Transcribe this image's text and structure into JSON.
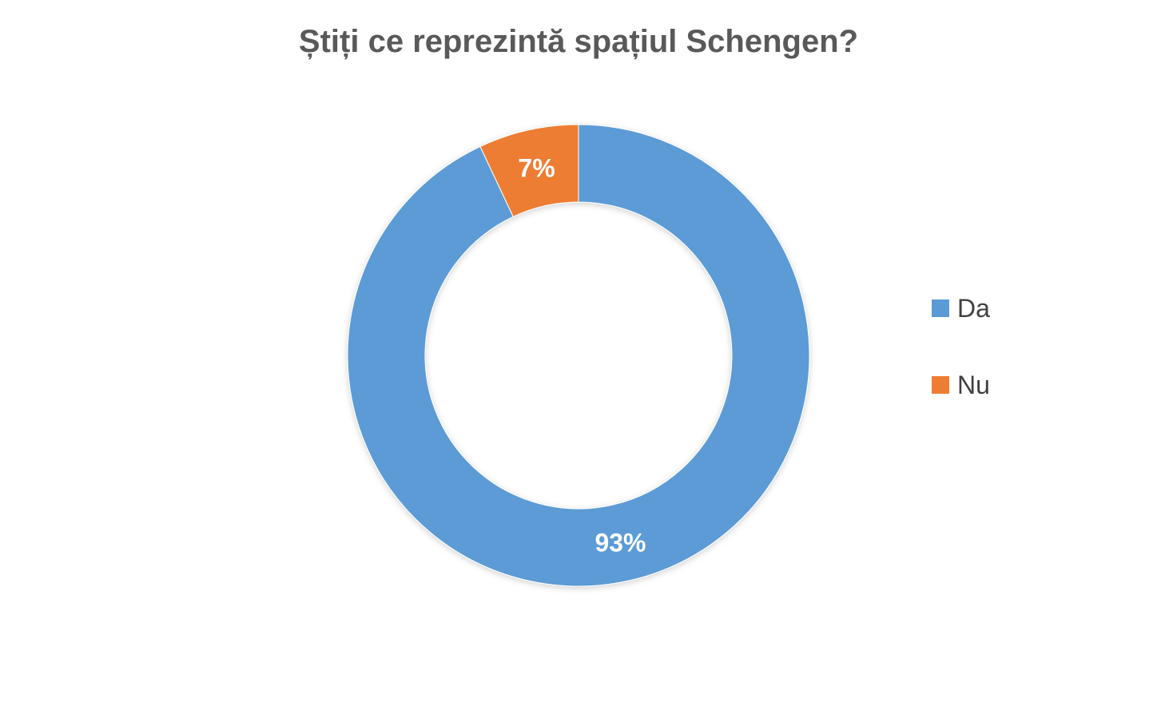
{
  "chart_data": {
    "type": "pie",
    "variant": "donut",
    "title": "Știți ce reprezintă spațiul Schengen?",
    "categories": [
      "Da",
      "Nu"
    ],
    "values": [
      93,
      7
    ],
    "labels": [
      "93%",
      "7%"
    ],
    "colors": [
      "#5B9BD5",
      "#ED7D31"
    ],
    "legend_position": "right"
  }
}
